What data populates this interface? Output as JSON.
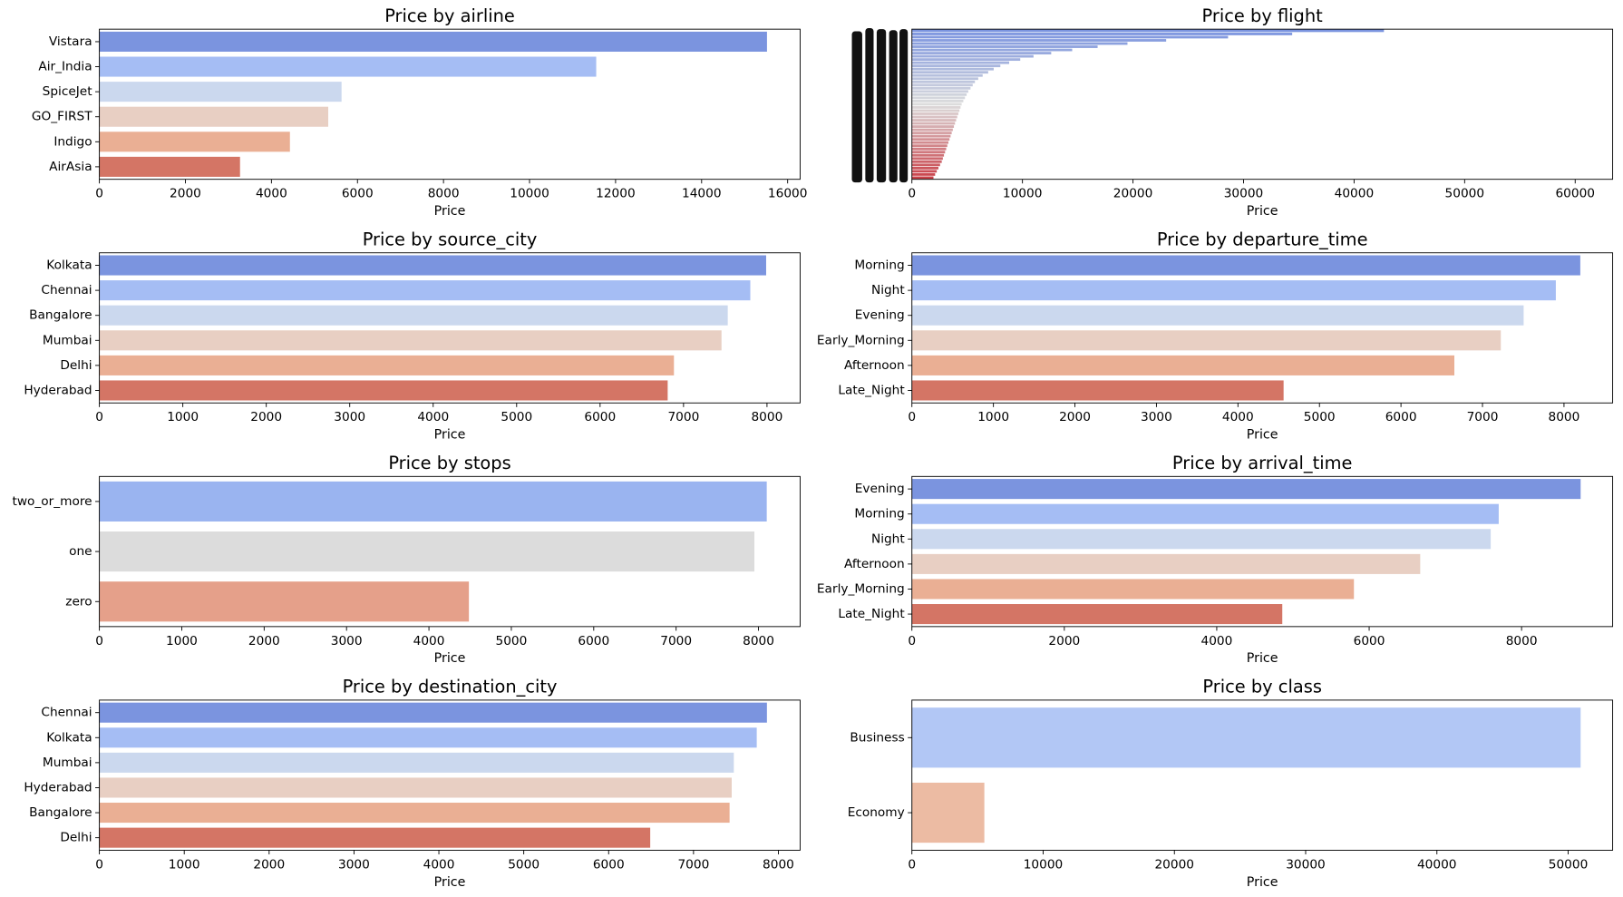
{
  "chart_data": [
    {
      "type": "barh",
      "title": "Price by airline",
      "xlabel": "Price",
      "categories": [
        "Vistara",
        "Air_India",
        "SpiceJet",
        "GO_FIRST",
        "Indigo",
        "AirAsia"
      ],
      "values": [
        15520,
        11550,
        5630,
        5320,
        4430,
        3270
      ],
      "colors": [
        "#7b94df",
        "#a5bdf4",
        "#cbd8ee",
        "#e8cfc3",
        "#eaaf94",
        "#d47565"
      ],
      "xlim": [
        0,
        16290
      ],
      "xticks": [
        0,
        2000,
        4000,
        6000,
        8000,
        10000,
        12000,
        14000,
        16000
      ]
    },
    {
      "type": "barh-gradient",
      "title": "Price by flight",
      "xlabel": "Price",
      "categories": [
        null,
        null,
        null,
        null,
        null,
        null,
        null,
        null,
        null,
        null,
        null,
        null,
        null,
        null,
        null,
        null,
        null,
        null,
        null,
        null,
        null,
        null,
        null,
        null,
        null,
        null,
        null,
        null,
        null,
        null,
        null,
        null,
        null,
        null,
        null,
        null,
        null,
        null,
        null,
        null,
        null,
        null,
        null,
        null,
        null,
        null,
        null
      ],
      "values": [
        42700,
        34400,
        28600,
        23000,
        19500,
        16800,
        14500,
        12600,
        11000,
        9800,
        8800,
        8000,
        7400,
        6900,
        6400,
        6000,
        5700,
        5500,
        5300,
        5100,
        4950,
        4800,
        4650,
        4500,
        4400,
        4300,
        4200,
        4100,
        4000,
        3900,
        3800,
        3700,
        3600,
        3500,
        3400,
        3300,
        3200,
        3100,
        3000,
        2900,
        2800,
        2700,
        2550,
        2400,
        2250,
        2100,
        1950
      ],
      "palette": [
        "#7b94df",
        "#dcdcdc",
        "#c9424a"
      ],
      "xlim": [
        0,
        63390
      ],
      "xticks": [
        0,
        10000,
        20000,
        30000,
        40000,
        50000,
        60000
      ]
    },
    {
      "type": "barh",
      "title": "Price by source_city",
      "xlabel": "Price",
      "categories": [
        "Kolkata",
        "Chennai",
        "Bangalore",
        "Mumbai",
        "Delhi",
        "Hyderabad"
      ],
      "values": [
        7990,
        7800,
        7530,
        7455,
        6885,
        6810
      ],
      "colors": [
        "#7b94df",
        "#a5bdf4",
        "#cbd8ee",
        "#e8cfc3",
        "#eaaf94",
        "#d47565"
      ],
      "xlim": [
        0,
        8397
      ],
      "xticks": [
        0,
        1000,
        2000,
        3000,
        4000,
        5000,
        6000,
        7000,
        8000
      ]
    },
    {
      "type": "barh",
      "title": "Price by departure_time",
      "xlabel": "Price",
      "categories": [
        "Morning",
        "Night",
        "Evening",
        "Early_Morning",
        "Afternoon",
        "Late_Night"
      ],
      "values": [
        8200,
        7900,
        7505,
        7225,
        6655,
        4560
      ],
      "colors": [
        "#7b94df",
        "#a5bdf4",
        "#cbd8ee",
        "#e8cfc3",
        "#eaaf94",
        "#d47565"
      ],
      "xlim": [
        0,
        8597
      ],
      "xticks": [
        0,
        1000,
        2000,
        3000,
        4000,
        5000,
        6000,
        7000,
        8000
      ]
    },
    {
      "type": "barh",
      "title": "Price by stops",
      "xlabel": "Price",
      "categories": [
        "two_or_more",
        "one",
        "zero"
      ],
      "values": [
        8100,
        7950,
        4485
      ],
      "colors": [
        "#9ab4f0",
        "#dcdcdc",
        "#e5a08a"
      ],
      "xlim": [
        0,
        8505
      ],
      "xticks": [
        0,
        1000,
        2000,
        3000,
        4000,
        5000,
        6000,
        7000,
        8000
      ]
    },
    {
      "type": "barh",
      "title": "Price by arrival_time",
      "xlabel": "Price",
      "categories": [
        "Evening",
        "Morning",
        "Night",
        "Afternoon",
        "Early_Morning",
        "Late_Night"
      ],
      "values": [
        8775,
        7700,
        7595,
        6670,
        5800,
        4860
      ],
      "colors": [
        "#7b94df",
        "#a5bdf4",
        "#cbd8ee",
        "#e8cfc3",
        "#eaaf94",
        "#d47565"
      ],
      "xlim": [
        0,
        9195
      ],
      "xticks": [
        0,
        2000,
        4000,
        6000,
        8000
      ]
    },
    {
      "type": "barh",
      "title": "Price by destination_city",
      "xlabel": "Price",
      "categories": [
        "Chennai",
        "Kolkata",
        "Mumbai",
        "Hyderabad",
        "Bangalore",
        "Delhi"
      ],
      "values": [
        7865,
        7745,
        7475,
        7450,
        7425,
        6490
      ],
      "colors": [
        "#7b94df",
        "#a5bdf4",
        "#cbd8ee",
        "#e8cfc3",
        "#eaaf94",
        "#d47565"
      ],
      "xlim": [
        0,
        8256
      ],
      "xticks": [
        0,
        1000,
        2000,
        3000,
        4000,
        5000,
        6000,
        7000,
        8000
      ]
    },
    {
      "type": "barh",
      "title": "Price by class",
      "xlabel": "Price",
      "categories": [
        "Business",
        "Economy"
      ],
      "values": [
        50950,
        5520
      ],
      "colors": [
        "#b2c7f5",
        "#ecbba3"
      ],
      "xlim": [
        0,
        53390
      ],
      "xticks": [
        0,
        10000,
        20000,
        30000,
        40000,
        50000
      ]
    }
  ]
}
